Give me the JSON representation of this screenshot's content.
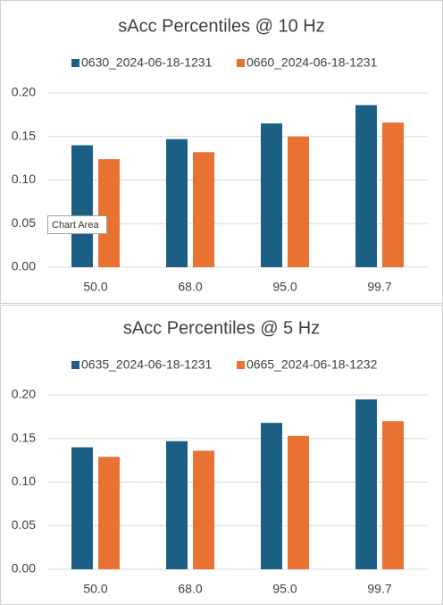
{
  "chart_data": [
    {
      "type": "bar",
      "title": "sAcc Percentiles @ 10 Hz",
      "categories": [
        "50.0",
        "68.0",
        "95.0",
        "99.7"
      ],
      "series": [
        {
          "name": "0630_2024-06-18-1231",
          "color": "#1c5f84",
          "values": [
            0.14,
            0.147,
            0.165,
            0.186
          ]
        },
        {
          "name": "0660_2024-06-18-1231",
          "color": "#e97132",
          "values": [
            0.124,
            0.132,
            0.15,
            0.166
          ]
        }
      ],
      "ylim": [
        0,
        0.2
      ],
      "yticks": [
        {
          "value": 0,
          "label": "0.00"
        },
        {
          "value": 0.05,
          "label": "0.05"
        },
        {
          "value": 0.1,
          "label": "0.10"
        },
        {
          "value": 0.15,
          "label": "0.15"
        },
        {
          "value": 0.2,
          "label": "0.20"
        }
      ],
      "grid": true,
      "legend": "top"
    },
    {
      "type": "bar",
      "title": "sAcc Percentiles @ 5 Hz",
      "categories": [
        "50.0",
        "68.0",
        "95.0",
        "99.7"
      ],
      "series": [
        {
          "name": "0635_2024-06-18-1231",
          "color": "#1c5f84",
          "values": [
            0.14,
            0.147,
            0.168,
            0.195
          ]
        },
        {
          "name": "0665_2024-06-18-1232",
          "color": "#e97132",
          "values": [
            0.129,
            0.136,
            0.153,
            0.17
          ]
        }
      ],
      "ylim": [
        0,
        0.2
      ],
      "yticks": [
        {
          "value": 0,
          "label": "0.00"
        },
        {
          "value": 0.05,
          "label": "0.05"
        },
        {
          "value": 0.1,
          "label": "0.10"
        },
        {
          "value": 0.15,
          "label": "0.15"
        },
        {
          "value": 0.2,
          "label": "0.20"
        }
      ],
      "grid": true,
      "legend": "top"
    }
  ],
  "tooltip": "Chart Area"
}
